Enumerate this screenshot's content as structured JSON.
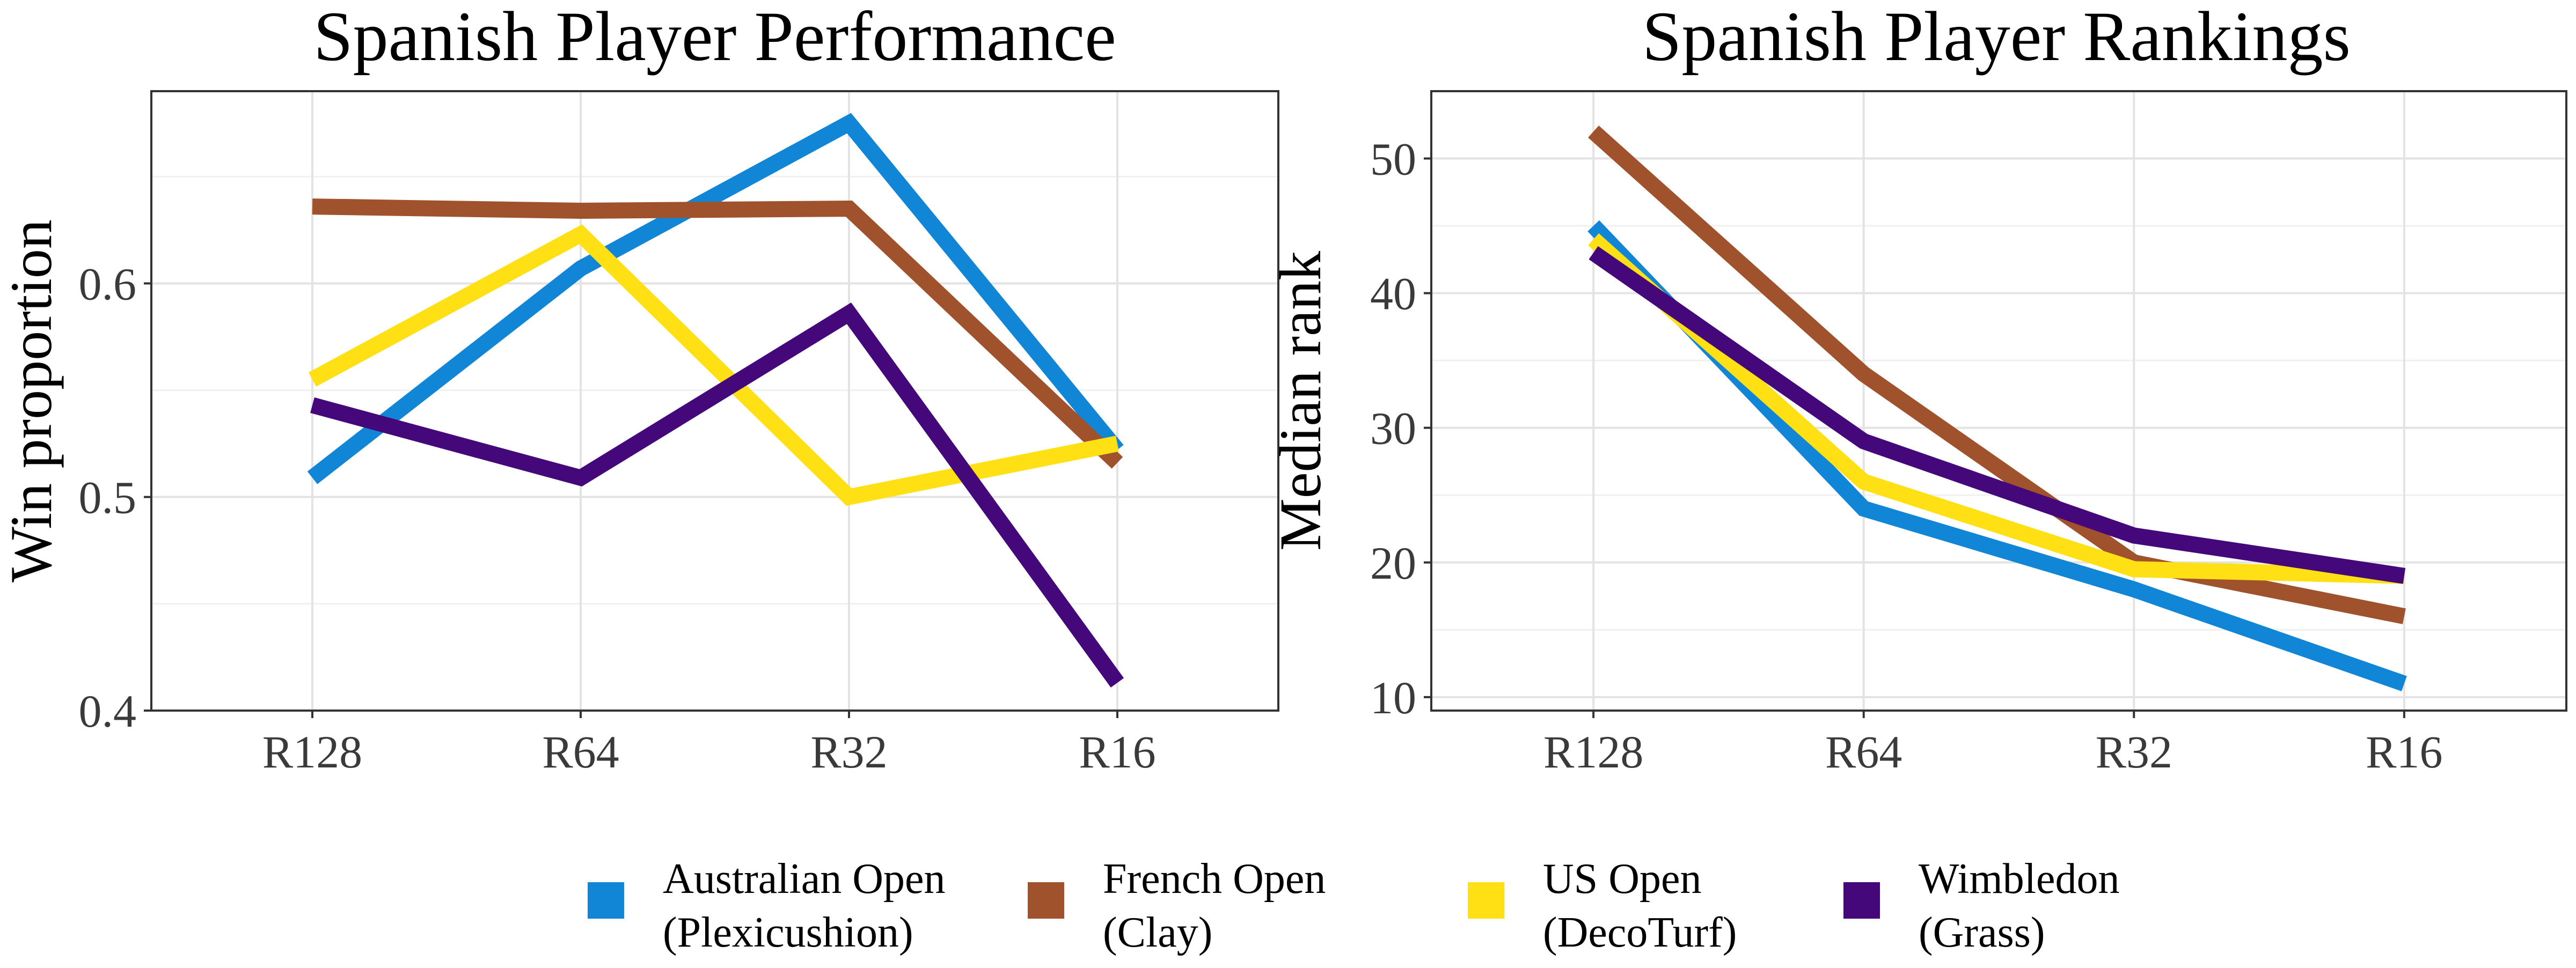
{
  "legend": [
    {
      "label_line1": "Australian Open",
      "label_line2": "(Plexicushion)",
      "color": "#1286d6"
    },
    {
      "label_line1": "French Open",
      "label_line2": "(Clay)",
      "color": "#a0522d"
    },
    {
      "label_line1": "US Open",
      "label_line2": "(DecoTurf)",
      "color": "#ffe014"
    },
    {
      "label_line1": "Wimbledon",
      "label_line2": "(Grass)",
      "color": "#45087a"
    }
  ],
  "chart_data": [
    {
      "type": "line",
      "title": "Spanish Player Performance",
      "xlabel": "",
      "ylabel": "Win proportion",
      "categories": [
        "R128",
        "R64",
        "R32",
        "R16"
      ],
      "ylim": [
        0.4,
        0.69
      ],
      "yticks": [
        "0.4",
        "0.5",
        "0.6"
      ],
      "grid": true,
      "legend_position": "bottom",
      "series": [
        {
          "name": "Australian Open (Plexicushion)",
          "color": "#1286d6",
          "values": [
            0.509,
            0.607,
            0.675,
            0.522
          ]
        },
        {
          "name": "French Open (Clay)",
          "color": "#a0522d",
          "values": [
            0.636,
            0.634,
            0.635,
            0.516
          ]
        },
        {
          "name": "US Open (DecoTurf)",
          "color": "#ffe014",
          "values": [
            0.555,
            0.623,
            0.5,
            0.525
          ]
        },
        {
          "name": "Wimbledon (Grass)",
          "color": "#45087a",
          "values": [
            0.543,
            0.509,
            0.586,
            0.413
          ]
        }
      ]
    },
    {
      "type": "line",
      "title": "Spanish Player Rankings",
      "xlabel": "",
      "ylabel": "Median rank",
      "categories": [
        "R128",
        "R64",
        "R32",
        "R16"
      ],
      "ylim": [
        9,
        55
      ],
      "yticks": [
        "10",
        "20",
        "30",
        "40",
        "50"
      ],
      "grid": true,
      "legend_position": "bottom",
      "series": [
        {
          "name": "Australian Open (Plexicushion)",
          "color": "#1286d6",
          "values": [
            45,
            24,
            18,
            11
          ]
        },
        {
          "name": "French Open (Clay)",
          "color": "#a0522d",
          "values": [
            52,
            34,
            20,
            16
          ]
        },
        {
          "name": "US Open (DecoTurf)",
          "color": "#ffe014",
          "values": [
            44,
            26,
            19.5,
            19
          ]
        },
        {
          "name": "Wimbledon (Grass)",
          "color": "#45087a",
          "values": [
            43,
            29,
            22,
            19
          ]
        }
      ]
    }
  ]
}
